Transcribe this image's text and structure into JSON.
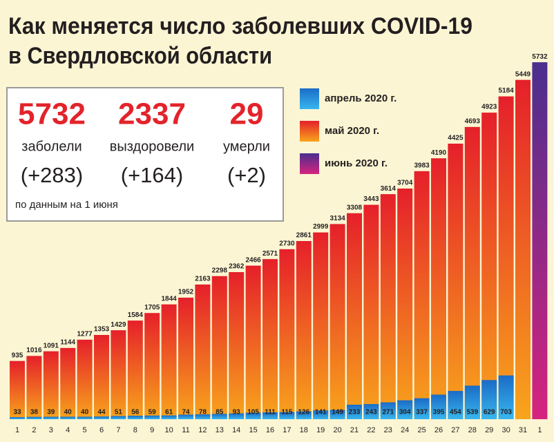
{
  "chart_data": {
    "type": "bar",
    "title": [
      "Как  меняется число  заболевших COVID-19",
      "в Свердловской области"
    ],
    "stats": [
      {
        "value": 5732,
        "label": "заболели",
        "change": "(+283)"
      },
      {
        "value": 2337,
        "label": "выздоровели",
        "change": "(+164)"
      },
      {
        "value": 29,
        "label": "умерли",
        "change": "(+2)"
      }
    ],
    "note": "по данным на 1 июня",
    "categories": [
      "1",
      "2",
      "3",
      "4",
      "5",
      "6",
      "7",
      "8",
      "9",
      "10",
      "11",
      "12",
      "13",
      "14",
      "15",
      "16",
      "17",
      "18",
      "19",
      "20",
      "21",
      "22",
      "23",
      "24",
      "25",
      "26",
      "27",
      "28",
      "29",
      "30",
      "31",
      "1"
    ],
    "series": [
      {
        "name": "май 2020 г.",
        "color": [
          "#e5202a",
          "#f8a51c"
        ],
        "values": [
          935,
          1016,
          1091,
          1144,
          1277,
          1353,
          1429,
          1584,
          1705,
          1844,
          1952,
          2163,
          2298,
          2362,
          2466,
          2571,
          2730,
          2861,
          2999,
          3134,
          3308,
          3443,
          3614,
          3704,
          3983,
          4190,
          4425,
          4693,
          4923,
          5184,
          5449,
          null
        ]
      },
      {
        "name": "апрель 2020 г.",
        "color": [
          "#1b6cc6",
          "#38b6ee"
        ],
        "values": [
          33,
          38,
          39,
          40,
          40,
          44,
          51,
          56,
          59,
          61,
          74,
          78,
          85,
          93,
          105,
          111,
          115,
          126,
          141,
          149,
          233,
          243,
          271,
          304,
          337,
          395,
          454,
          539,
          629,
          703,
          null,
          null
        ]
      },
      {
        "name": "июнь 2020 г.",
        "color": [
          "#4a2f8e",
          "#d6237e"
        ],
        "values": [
          null,
          null,
          null,
          null,
          null,
          null,
          null,
          null,
          null,
          null,
          null,
          null,
          null,
          null,
          null,
          null,
          null,
          null,
          null,
          null,
          null,
          null,
          null,
          null,
          null,
          null,
          null,
          null,
          null,
          null,
          null,
          5732
        ]
      }
    ],
    "legend_order": [
      1,
      0,
      2
    ],
    "ylim": [
      0,
      5800
    ]
  }
}
